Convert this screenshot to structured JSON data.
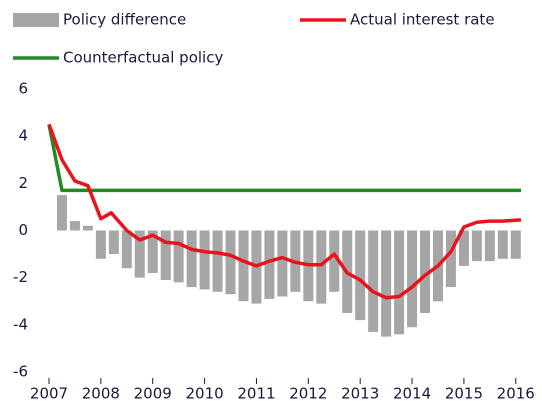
{
  "chart_data": {
    "type": "combo",
    "xlim": [
      2007,
      2016.12
    ],
    "xticks": [
      2007,
      2008,
      2009,
      2010,
      2011,
      2012,
      2013,
      2014,
      2015,
      2016
    ],
    "ylim": [
      -6,
      6
    ],
    "yticks": [
      -6,
      -4,
      -2,
      0,
      2,
      4,
      6
    ],
    "series": [
      {
        "name": "Policy difference",
        "type": "bar",
        "color": "#a6a6a6",
        "x": [
          2007.25,
          2007.5,
          2007.75,
          2008,
          2008.25,
          2008.5,
          2008.75,
          2009,
          2009.25,
          2009.5,
          2009.75,
          2010,
          2010.25,
          2010.5,
          2010.75,
          2011,
          2011.25,
          2011.5,
          2011.75,
          2012,
          2012.25,
          2012.5,
          2012.75,
          2013,
          2013.25,
          2013.5,
          2013.75,
          2014,
          2014.25,
          2014.5,
          2014.75,
          2015,
          2015.25,
          2015.5,
          2015.75,
          2016
        ],
        "values": [
          1.5,
          0.4,
          0.2,
          -1.2,
          -1.0,
          -1.6,
          -2.0,
          -1.8,
          -2.1,
          -2.2,
          -2.4,
          -2.5,
          -2.6,
          -2.7,
          -3.0,
          -3.1,
          -2.9,
          -2.8,
          -2.6,
          -3.0,
          -3.1,
          -2.6,
          -3.5,
          -3.8,
          -4.3,
          -4.5,
          -4.4,
          -4.1,
          -3.5,
          -3.0,
          -2.4,
          -1.5,
          -1.3,
          -1.3,
          -1.2,
          -1.2
        ]
      },
      {
        "name": "Actual interest rate",
        "type": "line",
        "color": "#e8141c",
        "x": [
          2007,
          2007.25,
          2007.5,
          2007.75,
          2008,
          2008.2,
          2008.5,
          2008.75,
          2009,
          2009.25,
          2009.5,
          2009.75,
          2010,
          2010.25,
          2010.5,
          2010.75,
          2011,
          2011.25,
          2011.5,
          2011.75,
          2012,
          2012.25,
          2012.5,
          2012.75,
          2013,
          2013.25,
          2013.5,
          2013.75,
          2014,
          2014.25,
          2014.5,
          2014.75,
          2015,
          2015.25,
          2015.5,
          2015.75,
          2016.1
        ],
        "values": [
          4.5,
          3.0,
          2.1,
          1.9,
          0.5,
          0.75,
          0.0,
          -0.4,
          -0.2,
          -0.5,
          -0.55,
          -0.8,
          -0.9,
          -0.95,
          -1.05,
          -1.3,
          -1.5,
          -1.3,
          -1.15,
          -1.35,
          -1.45,
          -1.45,
          -1.0,
          -1.8,
          -2.1,
          -2.6,
          -2.85,
          -2.8,
          -2.4,
          -1.9,
          -1.5,
          -0.9,
          0.15,
          0.35,
          0.4,
          0.4,
          0.45
        ]
      },
      {
        "name": "Counterfactual policy",
        "type": "line",
        "color": "#218b21",
        "x": [
          2007,
          2007.25,
          2016.1
        ],
        "values": [
          4.5,
          1.7,
          1.7
        ]
      }
    ]
  }
}
